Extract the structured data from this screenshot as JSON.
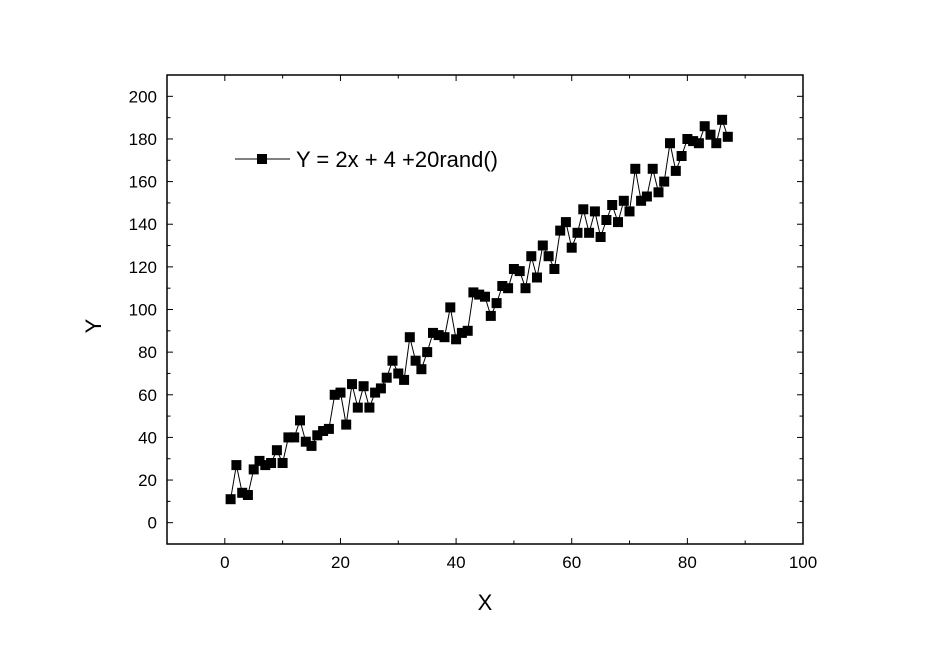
{
  "chart_data": {
    "type": "scatter",
    "xlabel": "X",
    "ylabel": "Y",
    "xlim": [
      -10,
      100
    ],
    "ylim": [
      -10,
      210
    ],
    "xticks": [
      0,
      20,
      40,
      60,
      80,
      100
    ],
    "yticks": [
      0,
      20,
      40,
      60,
      80,
      100,
      120,
      140,
      160,
      180,
      200
    ],
    "grid": false,
    "legend_position": "top-left",
    "series": [
      {
        "name": "Y = 2x + 4 +20rand()",
        "marker": "square",
        "line": true,
        "color": "#000000",
        "x": [
          1,
          2,
          3,
          4,
          5,
          6,
          7,
          8,
          9,
          10,
          11,
          12,
          13,
          14,
          15,
          16,
          17,
          18,
          19,
          20,
          21,
          22,
          23,
          24,
          25,
          26,
          27,
          28,
          29,
          30,
          31,
          32,
          33,
          34,
          35,
          36,
          37,
          38,
          39,
          40,
          41,
          42,
          43,
          44,
          45,
          46,
          47,
          48,
          49,
          50,
          51,
          52,
          53,
          54,
          55,
          56,
          57,
          58,
          59,
          60,
          61,
          62,
          63,
          64,
          65,
          66,
          67,
          68,
          69,
          70,
          71,
          72,
          73,
          74,
          75,
          76,
          77,
          78,
          79,
          80,
          81,
          82,
          83,
          84,
          85,
          86,
          87
        ],
        "y": [
          11,
          27,
          14,
          13,
          25,
          29,
          27,
          28,
          34,
          28,
          40,
          40,
          48,
          38,
          36,
          41,
          43,
          44,
          60,
          61,
          46,
          65,
          54,
          64,
          54,
          61,
          63,
          68,
          76,
          70,
          67,
          87,
          76,
          72,
          80,
          89,
          88,
          87,
          101,
          86,
          89,
          90,
          108,
          107,
          106,
          97,
          103,
          111,
          110,
          119,
          118,
          110,
          125,
          115,
          130,
          125,
          119,
          137,
          141,
          129,
          136,
          147,
          136,
          146,
          134,
          142,
          149,
          141,
          151,
          146,
          166,
          151,
          153,
          166,
          155,
          160,
          178,
          165,
          172,
          180,
          179,
          178,
          186,
          182,
          178,
          189,
          181
        ]
      }
    ]
  }
}
